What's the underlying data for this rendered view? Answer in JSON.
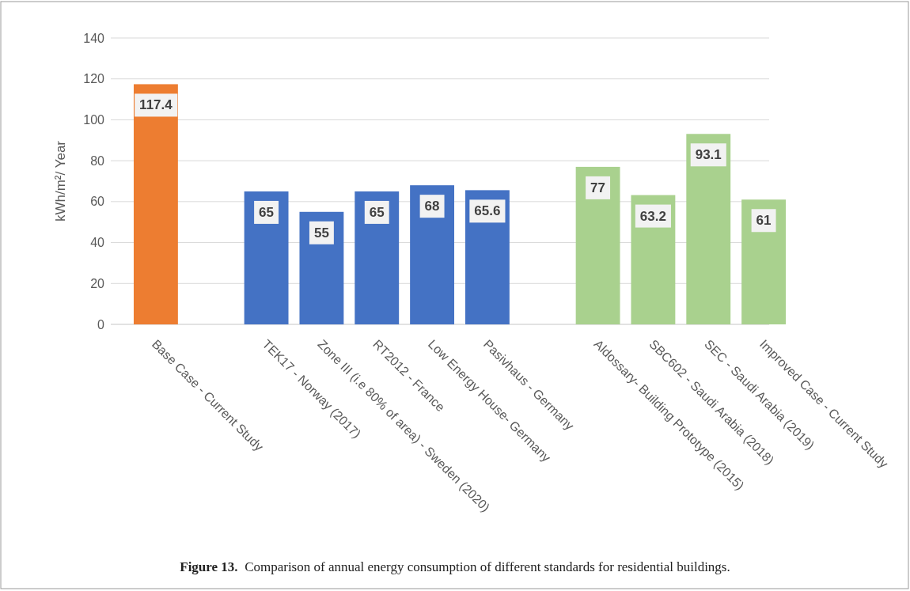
{
  "chart_data": {
    "type": "bar",
    "ylabel": "kWh/m²/ Year",
    "categories": [
      "Base Case - Current Study",
      null,
      "TEK17 - Norway (2017)",
      "Zone III (i.e 80% of area) - Sweden (2020)",
      "RT2012 - France",
      "Low Energy House- Germany",
      "Pasivhaus - Germany",
      null,
      "Aldossary- Building Prototype (2015)",
      "SBC602 - Saudi Arabia (2018)",
      "SEC - Saudi Arabia (2019)",
      "Improved Case - Current Study"
    ],
    "values": [
      117.4,
      null,
      65,
      55,
      65,
      68,
      65.6,
      null,
      77,
      63.2,
      93.1,
      61
    ],
    "colors": [
      "#ed7d31",
      null,
      "#4472c4",
      "#4472c4",
      "#4472c4",
      "#4472c4",
      "#4472c4",
      null,
      "#a9d18e",
      "#a9d18e",
      "#a9d18e",
      "#a9d18e"
    ],
    "ylim": [
      0,
      140
    ],
    "yticks": [
      0,
      20,
      40,
      60,
      80,
      100,
      120,
      140
    ],
    "grid": "y",
    "data_labels": true,
    "annotations": [
      "Figure 13.  Comparison of annual energy consumption of different standards for residential buildings."
    ]
  }
}
